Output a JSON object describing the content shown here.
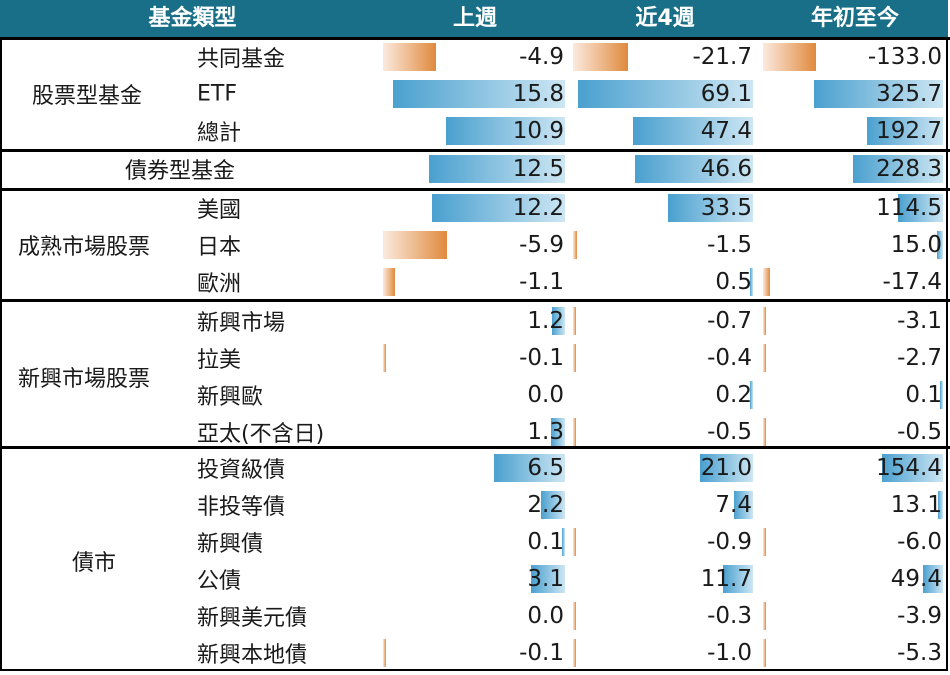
{
  "headers": {
    "category": "基金類型",
    "cols": [
      "上週",
      "近4週",
      "年初至今"
    ]
  },
  "colors": {
    "header_bg": "#1a6f88",
    "positive_bar": "#4aa0cf",
    "negative_bar": "#e08a3d"
  },
  "chart_data": {
    "type": "table",
    "columns": [
      "上週",
      "近4週",
      "年初至今"
    ],
    "groups": [
      {
        "name": "股票型基金",
        "rows": [
          {
            "label": "共同基金",
            "values": [
              -4.9,
              -21.7,
              -133.0
            ],
            "display": [
              "-4.9",
              "-21.7",
              "-133.0"
            ]
          },
          {
            "label": "ETF",
            "values": [
              15.8,
              69.1,
              325.7
            ],
            "display": [
              "15.8",
              "69.1",
              "325.7"
            ]
          },
          {
            "label": "總計",
            "values": [
              10.9,
              47.4,
              192.7
            ],
            "display": [
              "10.9",
              "47.4",
              "192.7"
            ]
          }
        ]
      },
      {
        "name": "債券型基金",
        "rows": [
          {
            "label": "",
            "values": [
              12.5,
              46.6,
              228.3
            ],
            "display": [
              "12.5",
              "46.6",
              "228.3"
            ]
          }
        ]
      },
      {
        "name": "成熟市場股票",
        "rows": [
          {
            "label": "美國",
            "values": [
              12.2,
              33.5,
              114.5
            ],
            "display": [
              "12.2",
              "33.5",
              "114.5"
            ]
          },
          {
            "label": "日本",
            "values": [
              -5.9,
              -1.5,
              15.0
            ],
            "display": [
              "-5.9",
              "-1.5",
              "15.0"
            ]
          },
          {
            "label": "歐洲",
            "values": [
              -1.1,
              0.5,
              -17.4
            ],
            "display": [
              "-1.1",
              "0.5",
              "-17.4"
            ]
          }
        ]
      },
      {
        "name": "新興市場股票",
        "rows": [
          {
            "label": "新興市場",
            "values": [
              1.2,
              -0.7,
              -3.1
            ],
            "display": [
              "1.2",
              "-0.7",
              "-3.1"
            ]
          },
          {
            "label": "拉美",
            "values": [
              -0.1,
              -0.4,
              -2.7
            ],
            "display": [
              "-0.1",
              "-0.4",
              "-2.7"
            ]
          },
          {
            "label": "新興歐",
            "values": [
              0.0,
              0.2,
              0.1
            ],
            "display": [
              "0.0",
              "0.2",
              "0.1"
            ]
          },
          {
            "label": "亞太(不含日)",
            "values": [
              1.3,
              -0.5,
              -0.5
            ],
            "display": [
              "1.3",
              "-0.5",
              "-0.5"
            ]
          }
        ]
      },
      {
        "name": "債市",
        "rows": [
          {
            "label": "投資級債",
            "values": [
              6.5,
              21.0,
              154.4
            ],
            "display": [
              "6.5",
              "21.0",
              "154.4"
            ]
          },
          {
            "label": "非投等債",
            "values": [
              2.2,
              7.4,
              13.1
            ],
            "display": [
              "2.2",
              "7.4",
              "13.1"
            ]
          },
          {
            "label": "新興債",
            "values": [
              0.1,
              -0.9,
              -6.0
            ],
            "display": [
              "0.1",
              "-0.9",
              "-6.0"
            ]
          },
          {
            "label": "公債",
            "values": [
              3.1,
              11.7,
              49.4
            ],
            "display": [
              "3.1",
              "11.7",
              "49.4"
            ]
          },
          {
            "label": "新興美元債",
            "values": [
              0.0,
              -0.3,
              -3.9
            ],
            "display": [
              "0.0",
              "-0.3",
              "-3.9"
            ]
          },
          {
            "label": "新興本地債",
            "values": [
              -0.1,
              -1.0,
              -5.3
            ],
            "display": [
              "-0.1",
              "-1.0",
              "-5.3"
            ]
          }
        ]
      }
    ]
  }
}
